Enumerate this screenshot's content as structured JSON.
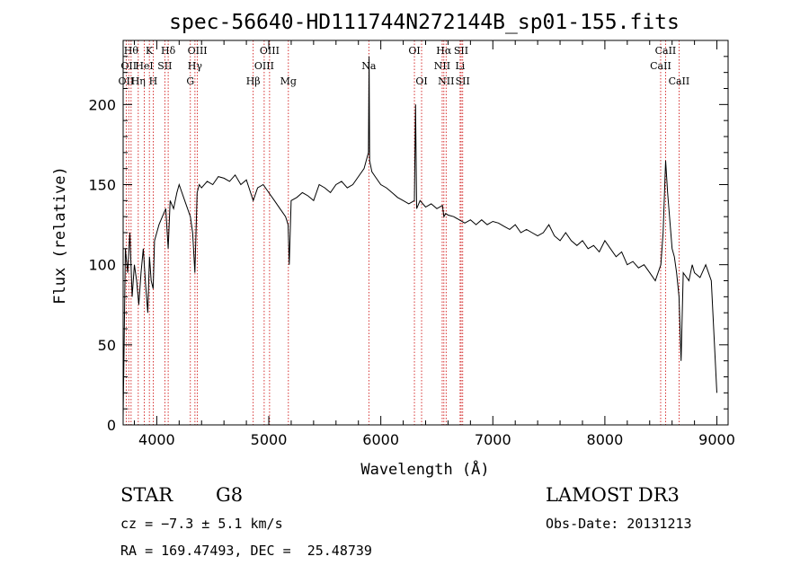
{
  "chart_data": {
    "type": "line",
    "title": "spec-56640-HD111744N272144B_sp01-155.fits",
    "xlabel": "Wavelength (Å)",
    "ylabel": "Flux (relative)",
    "xlim": [
      3700,
      9100
    ],
    "ylim": [
      0,
      240
    ],
    "xticks": [
      4000,
      5000,
      6000,
      7000,
      8000,
      9000
    ],
    "yticks": [
      0,
      50,
      100,
      150,
      200
    ],
    "grid": false,
    "series": [
      {
        "x": [
          3700,
          3720,
          3740,
          3760,
          3780,
          3800,
          3820,
          3840,
          3860,
          3880,
          3900,
          3920,
          3935,
          3950,
          3968,
          3980,
          4000,
          4020,
          4050,
          4080,
          4102,
          4120,
          4150,
          4180,
          4200,
          4250,
          4300,
          4320,
          4340,
          4360,
          4380,
          4400,
          4450,
          4500,
          4550,
          4600,
          4650,
          4700,
          4750,
          4800,
          4861,
          4900,
          4950,
          5000,
          5050,
          5100,
          5150,
          5172,
          5183,
          5200,
          5250,
          5300,
          5350,
          5400,
          5450,
          5500,
          5550,
          5600,
          5650,
          5700,
          5750,
          5800,
          5850,
          5890,
          5895,
          5900,
          5920,
          5950,
          6000,
          6050,
          6100,
          6150,
          6200,
          6250,
          6300,
          6310,
          6320,
          6350,
          6400,
          6450,
          6500,
          6550,
          6563,
          6580,
          6600,
          6650,
          6700,
          6750,
          6800,
          6850,
          6900,
          6950,
          7000,
          7050,
          7100,
          7150,
          7200,
          7250,
          7300,
          7350,
          7400,
          7450,
          7500,
          7550,
          7600,
          7650,
          7700,
          7750,
          7800,
          7850,
          7900,
          7950,
          8000,
          8050,
          8100,
          8150,
          8200,
          8250,
          8300,
          8350,
          8400,
          8450,
          8500,
          8520,
          8542,
          8560,
          8600,
          8620,
          8640,
          8662,
          8680,
          8700,
          8750,
          8780,
          8800,
          8850,
          8900,
          8950,
          9000
        ],
        "y": [
          5,
          110,
          95,
          120,
          80,
          100,
          90,
          75,
          95,
          110,
          88,
          70,
          105,
          90,
          85,
          115,
          120,
          125,
          130,
          135,
          110,
          140,
          135,
          145,
          150,
          140,
          130,
          120,
          95,
          145,
          150,
          148,
          152,
          150,
          155,
          154,
          152,
          156,
          150,
          153,
          140,
          148,
          150,
          145,
          140,
          135,
          130,
          125,
          100,
          140,
          142,
          145,
          143,
          140,
          150,
          148,
          145,
          150,
          152,
          148,
          150,
          155,
          160,
          170,
          230,
          165,
          158,
          155,
          150,
          148,
          145,
          142,
          140,
          138,
          140,
          200,
          135,
          140,
          136,
          138,
          135,
          137,
          130,
          132,
          131,
          130,
          128,
          126,
          128,
          125,
          128,
          125,
          127,
          126,
          124,
          122,
          125,
          120,
          122,
          120,
          118,
          120,
          125,
          118,
          115,
          120,
          115,
          112,
          115,
          110,
          112,
          108,
          115,
          110,
          105,
          108,
          100,
          102,
          98,
          100,
          95,
          90,
          100,
          120,
          165,
          145,
          110,
          105,
          95,
          80,
          40,
          95,
          90,
          100,
          95,
          92,
          100,
          90,
          20
        ]
      }
    ],
    "line_markers": [
      {
        "wl": 3727,
        "row": 2,
        "label": "OII"
      },
      {
        "wl": 3750,
        "row": 1,
        "label": "OII"
      },
      {
        "wl": 3771,
        "row": 0,
        "label": "Hθ"
      },
      {
        "wl": 3835,
        "row": 2,
        "label": "Hη"
      },
      {
        "wl": 3889,
        "row": 1,
        "label": "HeI"
      },
      {
        "wl": 3934,
        "row": 0,
        "label": "K"
      },
      {
        "wl": 3968,
        "row": 2,
        "label": "H"
      },
      {
        "wl": 4072,
        "row": 1,
        "label": "SII"
      },
      {
        "wl": 4102,
        "row": 0,
        "label": "Hδ"
      },
      {
        "wl": 4300,
        "row": 2,
        "label": "G"
      },
      {
        "wl": 4341,
        "row": 1,
        "label": "Hγ"
      },
      {
        "wl": 4363,
        "row": 0,
        "label": "OIII"
      },
      {
        "wl": 4861,
        "row": 2,
        "label": "Hβ"
      },
      {
        "wl": 4959,
        "row": 1,
        "label": "OIII"
      },
      {
        "wl": 5007,
        "row": 0,
        "label": "OIII"
      },
      {
        "wl": 5175,
        "row": 2,
        "label": "Mg"
      },
      {
        "wl": 5893,
        "row": 1,
        "label": "Na"
      },
      {
        "wl": 6300,
        "row": 0,
        "label": "OI"
      },
      {
        "wl": 6364,
        "row": 2,
        "label": "OI"
      },
      {
        "wl": 6548,
        "row": 1,
        "label": "NII"
      },
      {
        "wl": 6563,
        "row": 0,
        "label": "Hα"
      },
      {
        "wl": 6583,
        "row": 2,
        "label": "NII"
      },
      {
        "wl": 6708,
        "row": 1,
        "label": "Li"
      },
      {
        "wl": 6717,
        "row": 0,
        "label": "SII"
      },
      {
        "wl": 6731,
        "row": 2,
        "label": "SII"
      },
      {
        "wl": 8498,
        "row": 1,
        "label": "CaII"
      },
      {
        "wl": 8542,
        "row": 0,
        "label": "CaII"
      },
      {
        "wl": 8662,
        "row": 2,
        "label": "CaII"
      }
    ],
    "colors": {
      "line": "#000000",
      "marker": "#cc0000"
    }
  },
  "info": {
    "object_class": "STAR",
    "subclass": "G8",
    "survey": "LAMOST DR3",
    "cz": "cz = −7.3 ± 5.1 km/s",
    "obs_date": "Obs-Date: 20131213",
    "coords": "RA = 169.47493, DEC =  25.48739"
  }
}
